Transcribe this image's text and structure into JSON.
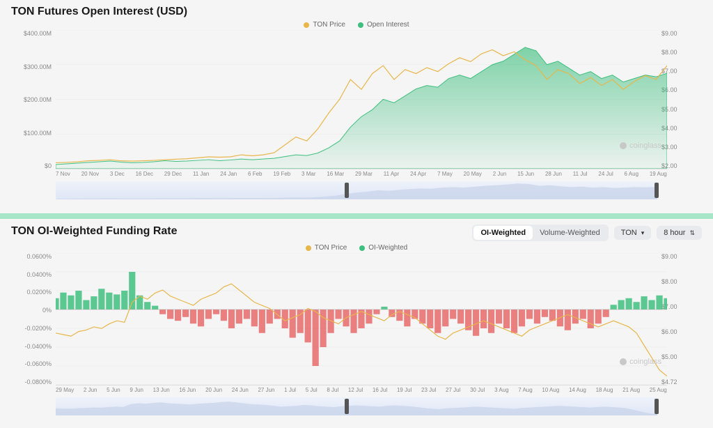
{
  "colors": {
    "price_line": "#e8b64a",
    "area_fill_top": "rgba(63,191,127,0.65)",
    "area_fill_bottom": "rgba(63,191,127,0.05)",
    "area_stroke": "#3fbf7f",
    "bar_pos": "#3fbf7f",
    "bar_neg": "#e86a6a",
    "grid": "#e6e6e6",
    "minimap": "#c8d3ea",
    "text": "#888888",
    "watermark": "#c8c8c8"
  },
  "watermark": "coinglass",
  "top_chart": {
    "title": "TON Futures Open Interest (USD)",
    "legend": [
      {
        "label": "TON Price",
        "color": "#e8b64a"
      },
      {
        "label": "Open Interest",
        "color": "#3fbf7f"
      }
    ],
    "y_left": {
      "ticks": [
        "$400.00M",
        "$300.00M",
        "$200.00M",
        "$100.00M",
        "$0"
      ],
      "min": 0,
      "max": 400
    },
    "y_right": {
      "ticks": [
        "$9.00",
        "$8.00",
        "$7.00",
        "$6.00",
        "$5.00",
        "$4.00",
        "$3.00",
        "$2.00"
      ],
      "min": 2,
      "max": 9
    },
    "x_ticks": [
      "7 Nov",
      "20 Nov",
      "3 Dec",
      "16 Dec",
      "29 Dec",
      "11 Jan",
      "24 Jan",
      "6 Feb",
      "19 Feb",
      "3 Mar",
      "16 Mar",
      "29 Mar",
      "11 Apr",
      "24 Apr",
      "7 May",
      "20 May",
      "2 Jun",
      "15 Jun",
      "28 Jun",
      "11 Jul",
      "24 Jul",
      "6 Aug",
      "19 Aug"
    ],
    "open_interest": [
      12,
      14,
      16,
      18,
      20,
      22,
      19,
      17,
      18,
      20,
      23,
      21,
      22,
      24,
      26,
      23,
      25,
      28,
      26,
      28,
      30,
      35,
      40,
      38,
      45,
      60,
      80,
      120,
      150,
      170,
      200,
      190,
      210,
      230,
      240,
      235,
      260,
      270,
      260,
      280,
      300,
      310,
      330,
      350,
      340,
      300,
      310,
      290,
      270,
      280,
      260,
      270,
      250,
      260,
      270,
      265,
      275
    ],
    "price": [
      2.3,
      2.32,
      2.35,
      2.4,
      2.42,
      2.45,
      2.4,
      2.38,
      2.4,
      2.42,
      2.45,
      2.48,
      2.5,
      2.55,
      2.6,
      2.58,
      2.6,
      2.7,
      2.65,
      2.7,
      2.8,
      3.2,
      3.6,
      3.4,
      4.0,
      4.8,
      5.5,
      6.5,
      6.0,
      6.8,
      7.2,
      6.5,
      7.0,
      6.8,
      7.1,
      6.9,
      7.3,
      7.6,
      7.4,
      7.8,
      8.0,
      7.7,
      7.9,
      7.5,
      7.2,
      6.5,
      7.0,
      6.8,
      6.3,
      6.6,
      6.2,
      6.5,
      6.0,
      6.4,
      6.7,
      6.5,
      7.2
    ],
    "minimap_handles": [
      0.48,
      0.995
    ]
  },
  "bottom_chart": {
    "title": "TON OI-Weighted Funding Rate",
    "controls": {
      "toggle": {
        "options": [
          "OI-Weighted",
          "Volume-Weighted"
        ],
        "active": 0
      },
      "symbol": "TON",
      "interval": "8 hour"
    },
    "legend": [
      {
        "label": "TON Price",
        "color": "#e8b64a"
      },
      {
        "label": "OI-Weighted",
        "color": "#3fbf7f"
      }
    ],
    "y_left": {
      "ticks": [
        "0.0600%",
        "0.0400%",
        "0.0200%",
        "0%",
        "-0.0200%",
        "-0.0400%",
        "-0.0600%",
        "-0.0800%"
      ],
      "min": -0.08,
      "max": 0.06
    },
    "y_right": {
      "ticks": [
        "$9.00",
        "$8.00",
        "$7.00",
        "$6.00",
        "$5.00",
        "$4.72"
      ],
      "min": 4.72,
      "max": 9
    },
    "x_ticks": [
      "29 May",
      "2 Jun",
      "5 Jun",
      "9 Jun",
      "13 Jun",
      "16 Jun",
      "20 Jun",
      "24 Jun",
      "27 Jun",
      "1 Jul",
      "5 Jul",
      "8 Jul",
      "12 Jul",
      "16 Jul",
      "19 Jul",
      "23 Jul",
      "27 Jul",
      "30 Jul",
      "3 Aug",
      "7 Aug",
      "10 Aug",
      "14 Aug",
      "18 Aug",
      "21 Aug",
      "25 Aug"
    ],
    "funding": [
      0.012,
      0.018,
      0.015,
      0.02,
      0.01,
      0.014,
      0.022,
      0.018,
      0.016,
      0.02,
      0.04,
      0.015,
      0.008,
      0.004,
      -0.005,
      -0.01,
      -0.012,
      -0.008,
      -0.015,
      -0.018,
      -0.01,
      -0.005,
      -0.012,
      -0.02,
      -0.015,
      -0.01,
      -0.018,
      -0.025,
      -0.015,
      -0.01,
      -0.02,
      -0.03,
      -0.025,
      -0.035,
      -0.06,
      -0.04,
      -0.025,
      -0.01,
      -0.018,
      -0.025,
      -0.02,
      -0.015,
      -0.005,
      0.003,
      -0.008,
      -0.012,
      -0.018,
      -0.01,
      -0.015,
      -0.02,
      -0.025,
      -0.018,
      -0.01,
      -0.015,
      -0.022,
      -0.028,
      -0.02,
      -0.025,
      -0.015,
      -0.02,
      -0.025,
      -0.018,
      -0.01,
      -0.015,
      -0.008,
      -0.012,
      -0.018,
      -0.022,
      -0.015,
      -0.01,
      -0.02,
      -0.015,
      -0.008,
      0.005,
      0.01,
      0.012,
      0.008,
      0.014,
      0.01,
      0.015,
      0.012
    ],
    "price": [
      6.4,
      6.35,
      6.3,
      6.45,
      6.5,
      6.6,
      6.55,
      6.7,
      6.8,
      6.75,
      7.4,
      7.6,
      7.5,
      7.7,
      7.8,
      7.6,
      7.5,
      7.4,
      7.3,
      7.5,
      7.6,
      7.7,
      7.9,
      8.0,
      7.8,
      7.6,
      7.4,
      7.3,
      7.2,
      7.0,
      6.8,
      6.9,
      7.0,
      7.2,
      7.1,
      6.9,
      6.8,
      6.7,
      6.9,
      7.0,
      7.1,
      7.0,
      6.9,
      6.8,
      7.0,
      7.1,
      7.0,
      6.9,
      6.7,
      6.5,
      6.3,
      6.2,
      6.4,
      6.5,
      6.6,
      6.7,
      6.8,
      6.7,
      6.6,
      6.5,
      6.4,
      6.3,
      6.5,
      6.6,
      6.7,
      6.8,
      6.9,
      7.0,
      6.9,
      6.8,
      6.7,
      6.6,
      6.7,
      6.8,
      6.7,
      6.6,
      6.4,
      6.0,
      5.6,
      5.2,
      5.0
    ],
    "minimap_handles": [
      0.48,
      0.995
    ]
  }
}
